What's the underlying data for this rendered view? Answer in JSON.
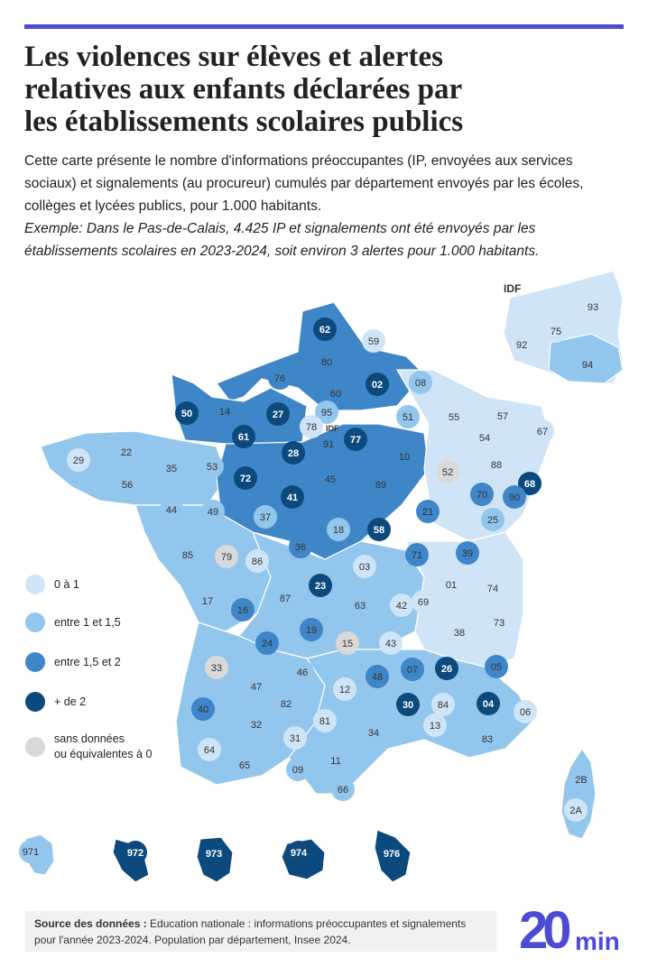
{
  "title": {
    "line1": "Les violences sur élèves et alertes",
    "line2": "relatives aux enfants déclarées par",
    "line3": "les établissements scolaires publics"
  },
  "intro": "Cette carte présente le nombre d'informations préoccupantes (IP, envoyées aux services sociaux) et signalements (au procureur) cumulés par département envoyés par les écoles, collèges et lycées publics, pour 1.000 habitants.",
  "example": "Exemple: Dans le Pas-de-Calais, 4.425 IP et signalements ont été envoyés par les établissements scolaires en 2023-2024, soit environ 3 alertes pour 1.000 habitants.",
  "colors": {
    "c0": "#cfe5f7",
    "c1": "#93c6ec",
    "c2": "#3f86c8",
    "c3": "#0c4a7e",
    "nd": "#d9d9d9",
    "accent": "#4b4bd6"
  },
  "legend": [
    {
      "key": "c0",
      "label": "0 à 1"
    },
    {
      "key": "c1",
      "label": "entre 1 et 1,5"
    },
    {
      "key": "c2",
      "label": "entre 1,5 et 2"
    },
    {
      "key": "c3",
      "label": "+ de 2"
    },
    {
      "key": "nd",
      "label": "sans données",
      "label2": "ou équivalentes à 0"
    }
  ],
  "idf_label": "IDF",
  "idf_small": "IDF",
  "departments": [
    {
      "code": "62",
      "cls": "c3"
    },
    {
      "code": "59",
      "cls": "c0"
    },
    {
      "code": "80",
      "cls": "c2"
    },
    {
      "code": "76",
      "cls": "c2"
    },
    {
      "code": "60",
      "cls": "c2"
    },
    {
      "code": "02",
      "cls": "c3"
    },
    {
      "code": "08",
      "cls": "c1"
    },
    {
      "code": "50",
      "cls": "c3"
    },
    {
      "code": "14",
      "cls": "c2"
    },
    {
      "code": "27",
      "cls": "c3"
    },
    {
      "code": "95",
      "cls": "c1"
    },
    {
      "code": "51",
      "cls": "c1"
    },
    {
      "code": "55",
      "cls": "c0"
    },
    {
      "code": "57",
      "cls": "c0"
    },
    {
      "code": "67",
      "cls": "c0"
    },
    {
      "code": "78",
      "cls": "c0"
    },
    {
      "code": "91",
      "cls": "c2"
    },
    {
      "code": "77",
      "cls": "c3"
    },
    {
      "code": "61",
      "cls": "c3"
    },
    {
      "code": "28",
      "cls": "c3"
    },
    {
      "code": "29",
      "cls": "c0"
    },
    {
      "code": "22",
      "cls": "c1"
    },
    {
      "code": "35",
      "cls": "c1"
    },
    {
      "code": "53",
      "cls": "c1"
    },
    {
      "code": "72",
      "cls": "c3"
    },
    {
      "code": "10",
      "cls": "c2"
    },
    {
      "code": "52",
      "cls": "nd"
    },
    {
      "code": "54",
      "cls": "c0"
    },
    {
      "code": "88",
      "cls": "c0"
    },
    {
      "code": "68",
      "cls": "c3"
    },
    {
      "code": "56",
      "cls": "c1"
    },
    {
      "code": "45",
      "cls": "c2"
    },
    {
      "code": "89",
      "cls": "c2"
    },
    {
      "code": "41",
      "cls": "c3"
    },
    {
      "code": "70",
      "cls": "c2"
    },
    {
      "code": "90",
      "cls": "c2"
    },
    {
      "code": "44",
      "cls": "c1"
    },
    {
      "code": "49",
      "cls": "c1"
    },
    {
      "code": "37",
      "cls": "c1"
    },
    {
      "code": "21",
      "cls": "c2"
    },
    {
      "code": "25",
      "cls": "c1"
    },
    {
      "code": "18",
      "cls": "c1"
    },
    {
      "code": "58",
      "cls": "c3"
    },
    {
      "code": "85",
      "cls": "c1"
    },
    {
      "code": "79",
      "cls": "nd"
    },
    {
      "code": "86",
      "cls": "c0"
    },
    {
      "code": "36",
      "cls": "c2"
    },
    {
      "code": "71",
      "cls": "c2"
    },
    {
      "code": "39",
      "cls": "c2"
    },
    {
      "code": "03",
      "cls": "c0"
    },
    {
      "code": "01",
      "cls": "c0"
    },
    {
      "code": "74",
      "cls": "c0"
    },
    {
      "code": "23",
      "cls": "c3"
    },
    {
      "code": "17",
      "cls": "c1"
    },
    {
      "code": "87",
      "cls": "c1"
    },
    {
      "code": "16",
      "cls": "c2"
    },
    {
      "code": "63",
      "cls": "c1"
    },
    {
      "code": "42",
      "cls": "c0"
    },
    {
      "code": "69",
      "cls": "c0"
    },
    {
      "code": "73",
      "cls": "c0"
    },
    {
      "code": "19",
      "cls": "c2"
    },
    {
      "code": "24",
      "cls": "c2"
    },
    {
      "code": "15",
      "cls": "nd"
    },
    {
      "code": "43",
      "cls": "c0"
    },
    {
      "code": "38",
      "cls": "c0"
    },
    {
      "code": "33",
      "cls": "nd"
    },
    {
      "code": "46",
      "cls": "c1"
    },
    {
      "code": "48",
      "cls": "c2"
    },
    {
      "code": "07",
      "cls": "c2"
    },
    {
      "code": "26",
      "cls": "c3"
    },
    {
      "code": "05",
      "cls": "c2"
    },
    {
      "code": "47",
      "cls": "c1"
    },
    {
      "code": "12",
      "cls": "c0"
    },
    {
      "code": "40",
      "cls": "c2"
    },
    {
      "code": "82",
      "cls": "c1"
    },
    {
      "code": "81",
      "cls": "c0"
    },
    {
      "code": "30",
      "cls": "c3"
    },
    {
      "code": "84",
      "cls": "c0"
    },
    {
      "code": "04",
      "cls": "c3"
    },
    {
      "code": "06",
      "cls": "c0"
    },
    {
      "code": "32",
      "cls": "c1"
    },
    {
      "code": "13",
      "cls": "c0"
    },
    {
      "code": "34",
      "cls": "c1"
    },
    {
      "code": "31",
      "cls": "c0"
    },
    {
      "code": "83",
      "cls": "c1"
    },
    {
      "code": "64",
      "cls": "c0"
    },
    {
      "code": "65",
      "cls": "c1"
    },
    {
      "code": "09",
      "cls": "c1"
    },
    {
      "code": "11",
      "cls": "c1"
    },
    {
      "code": "66",
      "cls": "c1"
    },
    {
      "code": "2B",
      "cls": "c1"
    },
    {
      "code": "2A",
      "cls": "c0"
    },
    {
      "code": "93",
      "cls": "c0"
    },
    {
      "code": "75",
      "cls": "c0"
    },
    {
      "code": "92",
      "cls": "c0"
    },
    {
      "code": "94",
      "cls": "c1"
    },
    {
      "code": "971",
      "cls": "c1"
    },
    {
      "code": "972",
      "cls": "c3"
    },
    {
      "code": "973",
      "cls": "c3"
    },
    {
      "code": "974",
      "cls": "c3"
    },
    {
      "code": "976",
      "cls": "c3"
    }
  ],
  "source": {
    "label": "Source des données :",
    "text": " Education nationale : informations préoccupantes et signalements pour l'année 2023-2024. Population par département, Insee 2024."
  },
  "logo": {
    "number": "20",
    "text": "min"
  }
}
